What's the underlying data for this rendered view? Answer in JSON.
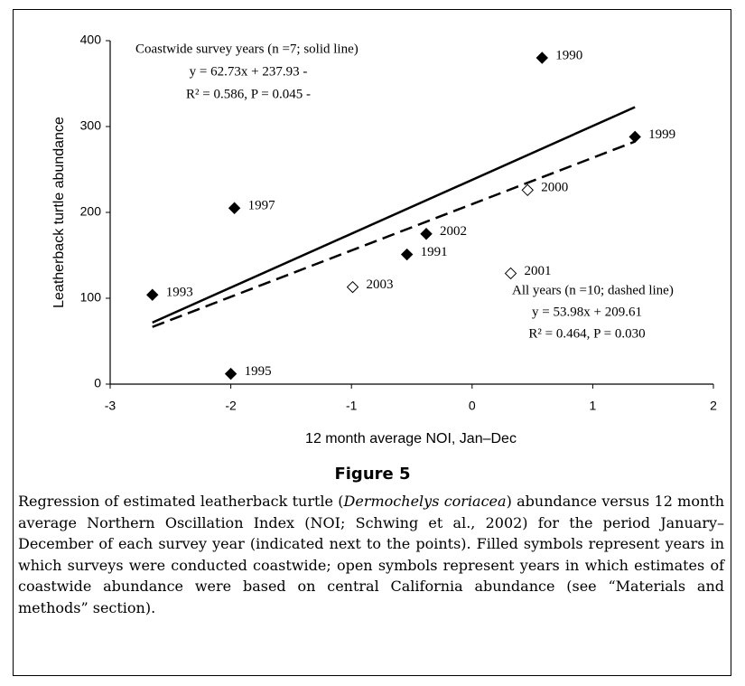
{
  "chart_data": {
    "type": "scatter",
    "x_label": "12 month average NOI, Jan–Dec",
    "y_label": "Leatherback turtle abundance",
    "xlim": [
      -3,
      2
    ],
    "xticks": [
      -3,
      -2,
      -1,
      0,
      1,
      2
    ],
    "ylim": [
      0,
      400
    ],
    "yticks": [
      0,
      100,
      200,
      300,
      400
    ],
    "series": [
      {
        "marker": "filled",
        "color": "#000000",
        "x": [
          0.58,
          1.35,
          -0.38,
          -0.54,
          -1.97,
          -2.65,
          -2.0
        ],
        "values": [
          380,
          288,
          175,
          151,
          205,
          104,
          12
        ],
        "point_labels": [
          "1990",
          "1999",
          "2002",
          "1991",
          "1997",
          "1993",
          "1995"
        ]
      },
      {
        "marker": "open",
        "color": "#000000",
        "x": [
          0.46,
          0.32,
          -0.99
        ],
        "values": [
          226,
          129,
          113
        ],
        "point_labels": [
          "2000",
          "2001",
          "2003"
        ]
      }
    ],
    "lines": [
      {
        "style": "solid",
        "x": [
          -2.65,
          1.35
        ],
        "values": [
          71.7,
          322.6
        ]
      },
      {
        "style": "dashed",
        "x": [
          -2.65,
          1.35
        ],
        "values": [
          66.6,
          282.5
        ]
      }
    ],
    "annotations": [
      [
        "Coastwide survey years (n =7; solid line)",
        "y = 62.73x + 237.93 -",
        "R² = 0.586, P = 0.045 -"
      ],
      [
        "All years (n =10; dashed line)",
        "y = 53.98x + 209.61",
        "R² = 0.464, P = 0.030"
      ]
    ]
  },
  "figure_label": "Figure 5",
  "caption": [
    "Regression of estimated leatherback turtle (",
    "Dermochelys coriacea",
    ") abundance versus 12 month average Northern Oscillation Index (NOI; Schwing et al., 2002) for the period January–December of each survey year (indicated next to the points). Filled symbols represent years in which surveys were conducted coastwide; open symbols represent years in which estimates of coastwide abundance were based on central California abundance (see “Materials and methods” section)."
  ]
}
